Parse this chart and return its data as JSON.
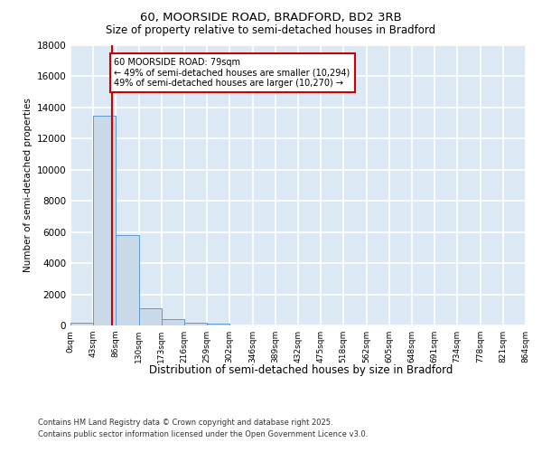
{
  "title_line1": "60, MOORSIDE ROAD, BRADFORD, BD2 3RB",
  "title_line2": "Size of property relative to semi-detached houses in Bradford",
  "xlabel": "Distribution of semi-detached houses by size in Bradford",
  "ylabel": "Number of semi-detached properties",
  "bin_edges": [
    0,
    43,
    86,
    130,
    173,
    216,
    259,
    302,
    346,
    389,
    432,
    475,
    518,
    562,
    605,
    648,
    691,
    734,
    778,
    821,
    864
  ],
  "bar_heights": [
    200,
    13500,
    5800,
    1100,
    400,
    200,
    100,
    0,
    0,
    0,
    0,
    0,
    0,
    0,
    0,
    0,
    0,
    0,
    0,
    0
  ],
  "bar_color": "#c9d9e8",
  "bar_edge_color": "#5b9bd5",
  "property_size": 79,
  "property_line_color": "#cc0000",
  "ylim": [
    0,
    18000
  ],
  "yticks": [
    0,
    2000,
    4000,
    6000,
    8000,
    10000,
    12000,
    14000,
    16000,
    18000
  ],
  "annotation_text": "60 MOORSIDE ROAD: 79sqm\n← 49% of semi-detached houses are smaller (10,294)\n49% of semi-detached houses are larger (10,270) →",
  "annotation_box_color": "#ffffff",
  "annotation_box_edge_color": "#cc0000",
  "footer_line1": "Contains HM Land Registry data © Crown copyright and database right 2025.",
  "footer_line2": "Contains public sector information licensed under the Open Government Licence v3.0.",
  "bg_color": "#dce9f5",
  "fig_color": "#ffffff",
  "grid_color": "#ffffff"
}
